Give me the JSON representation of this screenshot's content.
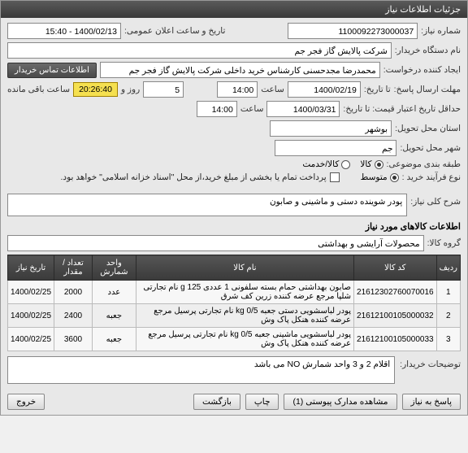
{
  "panel_title": "جزئیات اطلاعات نیاز",
  "form": {
    "req_num_label": "شماره نیاز:",
    "req_num": "1100092273000037",
    "announce_label": "تاریخ و ساعت اعلان عمومی:",
    "announce_val": "1400/02/13 - 15:40",
    "org_label": "نام دستگاه خریدار:",
    "org_val": "شرکت پالایش گاز فجر جم",
    "creator_label": "ایجاد کننده درخواست:",
    "creator_val": "محمدرضا مجدحسنی کارشناس خرید داخلی شرکت پالایش گاز فجر جم",
    "contact_btn": "اطلاعات تماس خریدار",
    "deadline_label": "مهلت ارسال پاسخ:",
    "deadline_to_label": "تا تاریخ:",
    "deadline_date": "1400/02/19",
    "hour_label": "ساعت",
    "deadline_time": "14:00",
    "days_field": "5",
    "days_label": "روز و",
    "countdown": "20:26:40",
    "remain_label": "ساعت باقی مانده",
    "valid_label": "حداقل تاریخ اعتبار قیمت: تا تاریخ:",
    "valid_date": "1400/03/31",
    "valid_time": "14:00",
    "province_label": "استان محل تحویل:",
    "province_val": "بوشهر",
    "city_label": "شهر محل تحویل:",
    "city_val": "جم",
    "budget_label": "طبقه بندی موضوعی:",
    "budget_opts": {
      "kala": "کالا",
      "khadamat": "کالا/خدمت"
    },
    "process_label": "نوع فرآیند خرید :",
    "process_opts": {
      "low": "متوسط"
    },
    "pay_note": "پرداخت تمام یا بخشی از مبلغ خرید،از محل \"اسناد خزانه اسلامی\" خواهد بود.",
    "summary_label": "شرح کلی نیاز:",
    "summary_val": "پودر شوینده دستی و ماشینی و صابون",
    "items_section": "اطلاعات کالاهای مورد نیاز",
    "group_label": "گروه کالا:",
    "group_val": "محصولات آرایشی و بهداشتی",
    "buyer_notes_label": "توضیحات خریدار:",
    "buyer_notes_val": "اقلام 2 و  3   واحد شمارش NO می باشد"
  },
  "table": {
    "headers": [
      "ردیف",
      "کد کالا",
      "نام کالا",
      "واحد شمارش",
      "تعداد / مقدار",
      "تاریخ نیاز"
    ],
    "rows": [
      [
        "1",
        "21612302760070016",
        "صابون بهداشتی حمام بسته سلفونی 1 عددی 125 g نام تجارتی شلپا مرجع عرضه کننده زرین کف شرق",
        "عدد",
        "2000",
        "1400/02/25"
      ],
      [
        "2",
        "21612100105000032",
        "پودر لباسشویی دستی جعبه kg 0/5 نام تجارتی پرسیل مرجع عرضه کننده هنکل پاک وش",
        "جعبه",
        "2400",
        "1400/02/25"
      ],
      [
        "3",
        "21612100105000033",
        "پودر لباسشویی ماشینی جعبه kg 0/5 نام تجارتی پرسیل مرجع عرضه کننده هنکل پاک وش",
        "جعبه",
        "3600",
        "1400/02/25"
      ]
    ]
  },
  "buttons": {
    "reply": "پاسخ به نیاز",
    "attach": "مشاهده مدارک پیوستی (1)",
    "print": "چاپ",
    "back": "بازگشت",
    "exit": "خروج"
  }
}
